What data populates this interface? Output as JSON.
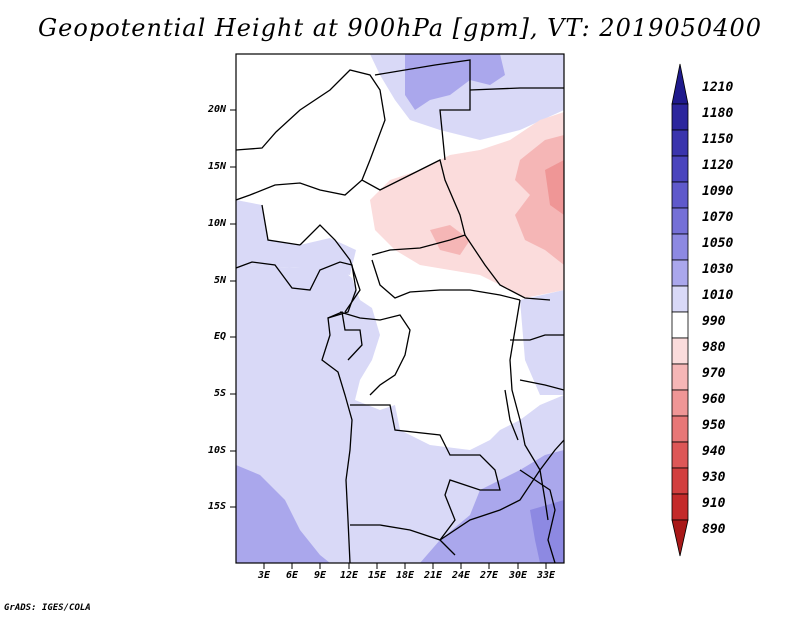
{
  "title": "Geopotential Height at 900hPa [gpm], VT: 2019050400",
  "credit": "GrADS: IGES/COLA",
  "y_labels": [
    "20N",
    "15N",
    "10N",
    "5N",
    "EQ",
    "5S",
    "10S",
    "15S"
  ],
  "x_labels": [
    "3E",
    "6E",
    "9E",
    "12E",
    "15E",
    "18E",
    "21E",
    "24E",
    "27E",
    "30E",
    "33E"
  ],
  "colorbar": [
    {
      "label": "1210",
      "color": "#1f1a8c"
    },
    {
      "label": "1180",
      "color": "#2c269d"
    },
    {
      "label": "1150",
      "color": "#3a34ad"
    },
    {
      "label": "1120",
      "color": "#4a44bd"
    },
    {
      "label": "1090",
      "color": "#5f59cb"
    },
    {
      "label": "1070",
      "color": "#7570d7"
    },
    {
      "label": "1050",
      "color": "#8d89e2"
    },
    {
      "label": "1030",
      "color": "#aaa7ec"
    },
    {
      "label": "1010",
      "color": "#d9d9f7"
    },
    {
      "label": "990",
      "color": "#ffffff"
    },
    {
      "label": "980",
      "color": "#fbdcdc"
    },
    {
      "label": "970",
      "color": "#f5b6b6"
    },
    {
      "label": "960",
      "color": "#ef9696"
    },
    {
      "label": "950",
      "color": "#e77777"
    },
    {
      "label": "940",
      "color": "#dd5757"
    },
    {
      "label": "930",
      "color": "#d23f3f"
    },
    {
      "label": "910",
      "color": "#c42a2a"
    },
    {
      "label": "890",
      "color": "#a81818"
    }
  ],
  "colors": {
    "frame": "#000000",
    "border": "#000000"
  }
}
